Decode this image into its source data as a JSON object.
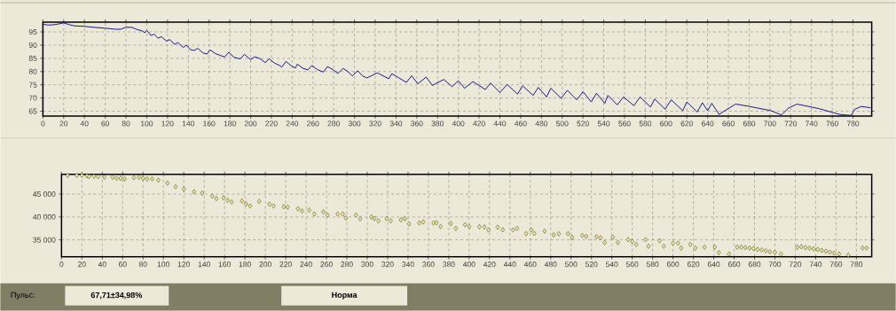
{
  "chart_data": [
    {
      "type": "line",
      "color": "#00008b",
      "line_style": "solid",
      "marker": "none",
      "grid": true,
      "x": [
        0,
        5,
        10,
        15,
        20,
        25,
        30,
        40,
        50,
        60,
        70,
        75,
        80,
        86,
        90,
        96,
        98,
        100,
        104,
        107,
        111,
        114,
        119,
        122,
        127,
        130,
        135,
        138,
        142,
        146,
        149,
        154,
        158,
        161,
        166,
        170,
        175,
        179,
        184,
        190,
        194,
        200,
        204,
        209,
        214,
        218,
        223,
        227,
        230,
        234,
        239,
        243,
        245,
        250,
        255,
        259,
        264,
        270,
        274,
        279,
        284,
        289,
        294,
        298,
        303,
        308,
        312,
        322,
        333,
        336,
        350,
        355,
        361,
        369,
        375,
        386,
        394,
        400,
        406,
        414,
        426,
        431,
        440,
        447,
        457,
        462,
        472,
        477,
        485,
        489,
        499,
        505,
        514,
        520,
        528,
        533,
        541,
        544,
        553,
        559,
        569,
        575,
        585,
        589,
        599,
        605,
        616,
        620,
        630,
        635,
        640,
        644,
        651,
        659,
        667,
        679,
        701,
        711,
        718,
        726,
        747,
        767,
        778,
        782,
        788,
        797
      ],
      "values": [
        97.9,
        97.6,
        97.7,
        98.0,
        98.4,
        97.8,
        97.3,
        97.1,
        96.7,
        96.4,
        96.0,
        96.0,
        96.8,
        96.7,
        96.0,
        95.3,
        94.7,
        95.6,
        93.6,
        94.2,
        92.6,
        93.2,
        91.5,
        92.1,
        90.3,
        91.0,
        89.1,
        90.0,
        88.3,
        88.0,
        88.8,
        87.1,
        86.6,
        88.2,
        86.8,
        86.2,
        85.5,
        87.3,
        85.4,
        84.8,
        86.5,
        84.5,
        85.6,
        84.9,
        83.4,
        84.8,
        83.2,
        82.5,
        81.7,
        83.8,
        82.2,
        81.3,
        82.8,
        81.3,
        80.6,
        82.3,
        80.8,
        79.8,
        81.9,
        80.8,
        79.3,
        81.2,
        79.9,
        78.3,
        80.3,
        78.3,
        77.6,
        79.5,
        77.3,
        79.2,
        75.9,
        78.4,
        75.4,
        77.9,
        74.8,
        77.0,
        74.3,
        76.5,
        73.7,
        76.2,
        73.2,
        75.7,
        72.1,
        75.1,
        71.5,
        74.6,
        71.0,
        74.0,
        70.4,
        73.7,
        69.9,
        72.9,
        69.3,
        72.4,
        68.5,
        71.8,
        68.0,
        71.0,
        67.4,
        70.4,
        67.1,
        70.4,
        66.6,
        69.6,
        65.8,
        69.3,
        65.2,
        68.5,
        64.7,
        68.2,
        65.2,
        68.0,
        63.8,
        65.8,
        67.7,
        66.9,
        65.2,
        63.6,
        66.2,
        67.7,
        66.0,
        63.8,
        63.4,
        65.8,
        66.8,
        66.3
      ],
      "xlim": [
        0,
        798
      ],
      "ylim": [
        63.2,
        98.7
      ],
      "xticks": [
        0,
        20,
        40,
        60,
        80,
        100,
        120,
        140,
        160,
        180,
        200,
        220,
        240,
        260,
        280,
        300,
        320,
        340,
        360,
        380,
        400,
        420,
        440,
        460,
        480,
        500,
        520,
        540,
        560,
        580,
        600,
        620,
        640,
        660,
        680,
        700,
        720,
        740,
        760,
        780
      ],
      "yticks": [
        65,
        70,
        75,
        80,
        85,
        90,
        95
      ]
    },
    {
      "type": "scatter",
      "color": "#f2ee86",
      "marker": "diamond",
      "grid": true,
      "x": [
        6,
        15,
        20,
        25,
        27,
        32,
        36,
        42,
        50,
        54,
        58,
        62,
        71,
        76,
        80,
        84,
        89,
        95,
        104,
        112,
        120,
        130,
        138,
        148,
        152,
        159,
        163,
        167,
        177,
        181,
        185,
        194,
        204,
        208,
        218,
        222,
        232,
        236,
        243,
        248,
        257,
        261,
        271,
        276,
        279,
        289,
        293,
        304,
        307,
        311,
        319,
        323,
        333,
        337,
        341,
        351,
        355,
        365,
        368,
        372,
        382,
        387,
        396,
        400,
        410,
        415,
        419,
        428,
        433,
        443,
        447,
        456,
        461,
        464,
        474,
        483,
        488,
        497,
        501,
        511,
        515,
        525,
        529,
        533,
        541,
        546,
        556,
        560,
        564,
        573,
        576,
        587,
        591,
        600,
        605,
        608,
        617,
        622,
        631,
        641,
        645,
        655,
        663,
        667,
        671,
        675,
        679,
        683,
        687,
        691,
        695,
        700,
        706,
        722,
        726,
        730,
        734,
        738,
        742,
        746,
        750,
        754,
        758,
        763,
        772,
        786,
        790
      ],
      "values": [
        49100,
        49100,
        49100,
        49000,
        48850,
        48900,
        48800,
        48700,
        48700,
        48450,
        48450,
        48300,
        48600,
        48700,
        48450,
        48300,
        48300,
        48050,
        47400,
        46600,
        46100,
        45500,
        45200,
        44550,
        44000,
        44200,
        43650,
        43250,
        43500,
        42850,
        42400,
        43400,
        42800,
        42400,
        42250,
        42150,
        41800,
        41300,
        41500,
        40650,
        41100,
        40450,
        40650,
        40650,
        39800,
        40450,
        39600,
        40000,
        39650,
        39150,
        39650,
        39150,
        39350,
        39600,
        38500,
        38700,
        38900,
        38700,
        38750,
        37900,
        38550,
        37500,
        38300,
        37900,
        37850,
        37800,
        37150,
        37750,
        37200,
        37150,
        37500,
        36350,
        37150,
        36400,
        36900,
        36100,
        36300,
        36350,
        35550,
        35950,
        35750,
        35700,
        35450,
        34400,
        35600,
        34400,
        35050,
        34650,
        34000,
        35050,
        33600,
        34800,
        33600,
        34250,
        34250,
        33200,
        34000,
        33200,
        33400,
        33400,
        32200,
        31900,
        33400,
        33400,
        33300,
        33200,
        33100,
        32900,
        32800,
        32600,
        32400,
        32300,
        31900,
        33400,
        33500,
        33300,
        33200,
        33000,
        32900,
        32700,
        32500,
        32300,
        32100,
        31900,
        31700,
        33200,
        33200
      ],
      "xlim": [
        0,
        795
      ],
      "ylim": [
        31300,
        49300
      ],
      "xticks": [
        0,
        20,
        40,
        60,
        80,
        100,
        120,
        140,
        160,
        180,
        200,
        220,
        240,
        260,
        280,
        300,
        320,
        340,
        360,
        380,
        400,
        420,
        440,
        460,
        480,
        500,
        520,
        540,
        560,
        580,
        600,
        620,
        640,
        660,
        680,
        700,
        720,
        740,
        760,
        780
      ],
      "yticks": [
        {
          "value": 35000,
          "label": "35 000"
        },
        {
          "value": 40000,
          "label": "40 000"
        },
        {
          "value": 45000,
          "label": "45 000"
        }
      ]
    },
    {
      "type": "other",
      "annotations": [
        "Пульс:",
        "67,71±34,98%",
        "Норма"
      ]
    }
  ]
}
